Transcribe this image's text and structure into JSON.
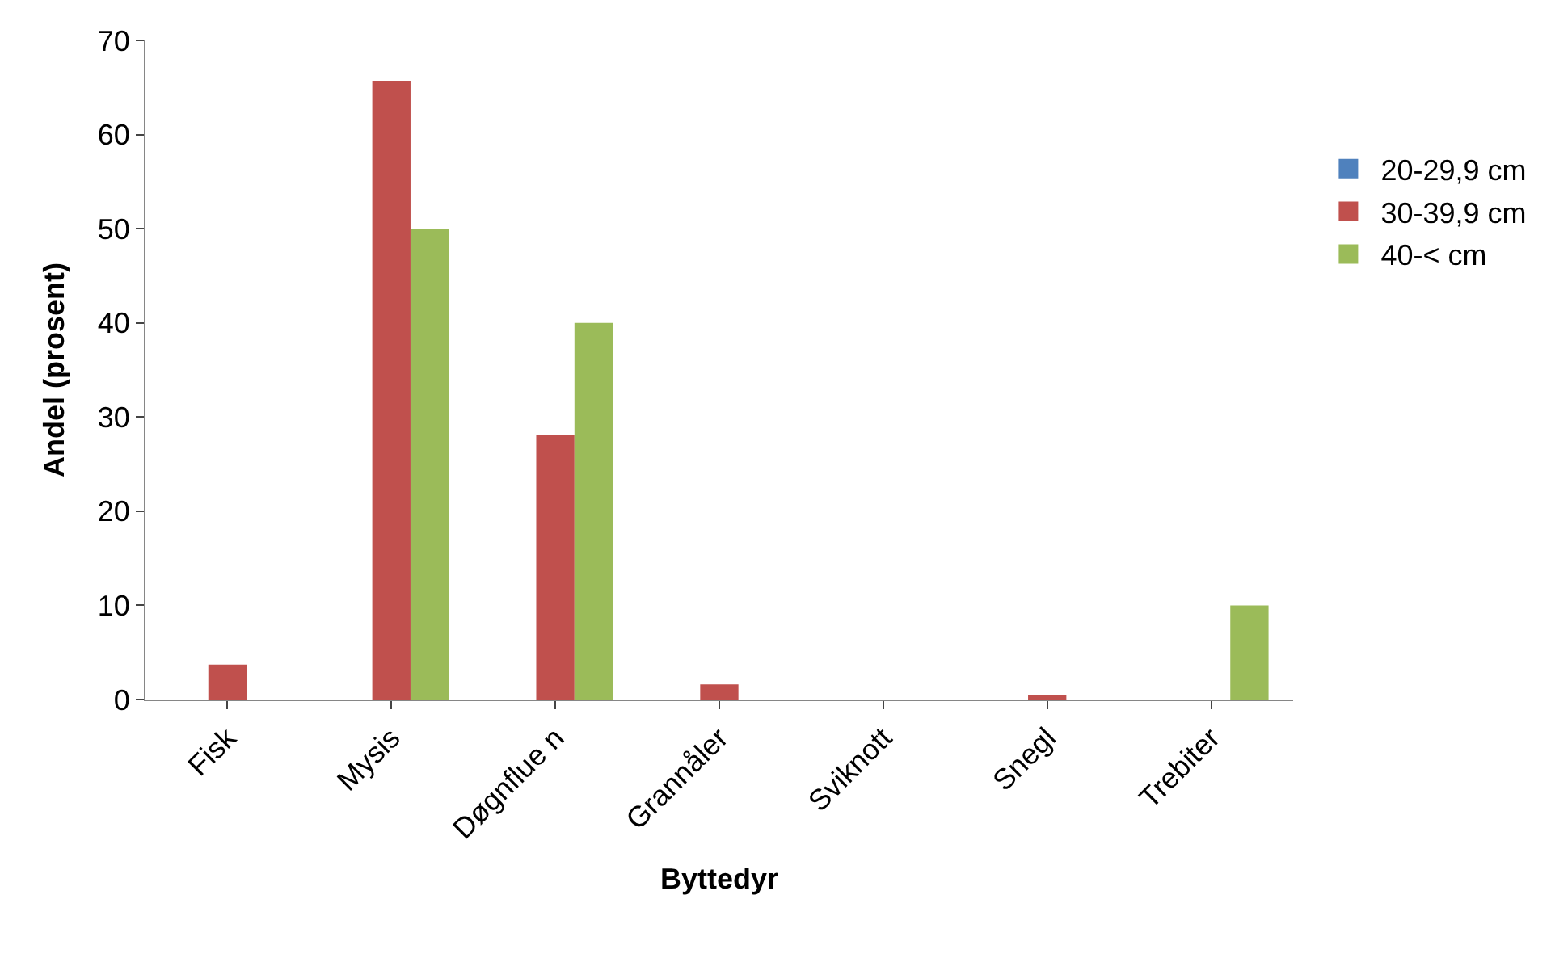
{
  "chart_data": {
    "type": "bar",
    "xlabel": "Byttedyr",
    "ylabel": "Andel (prosent)",
    "categories": [
      "Fisk",
      "Mysis",
      "Døgnflue n",
      "Grannåler",
      "Sviknott",
      "Snegl",
      "Trebiter"
    ],
    "series": [
      {
        "name": "20-29,9 cm",
        "color": "#4f81bd",
        "values": [
          0,
          0,
          0,
          0,
          0,
          0,
          0
        ]
      },
      {
        "name": "30-39,9 cm",
        "color": "#c0504d",
        "values": [
          3.7,
          65.7,
          28.1,
          1.6,
          0,
          0.5,
          0
        ]
      },
      {
        "name": "40-< cm",
        "color": "#9bbb59",
        "values": [
          0,
          50,
          40,
          0,
          0,
          0,
          10
        ]
      }
    ],
    "ylim": [
      0,
      70
    ],
    "yticks": [
      0,
      10,
      20,
      30,
      40,
      50,
      60,
      70
    ],
    "grid": false,
    "legend": "right"
  }
}
